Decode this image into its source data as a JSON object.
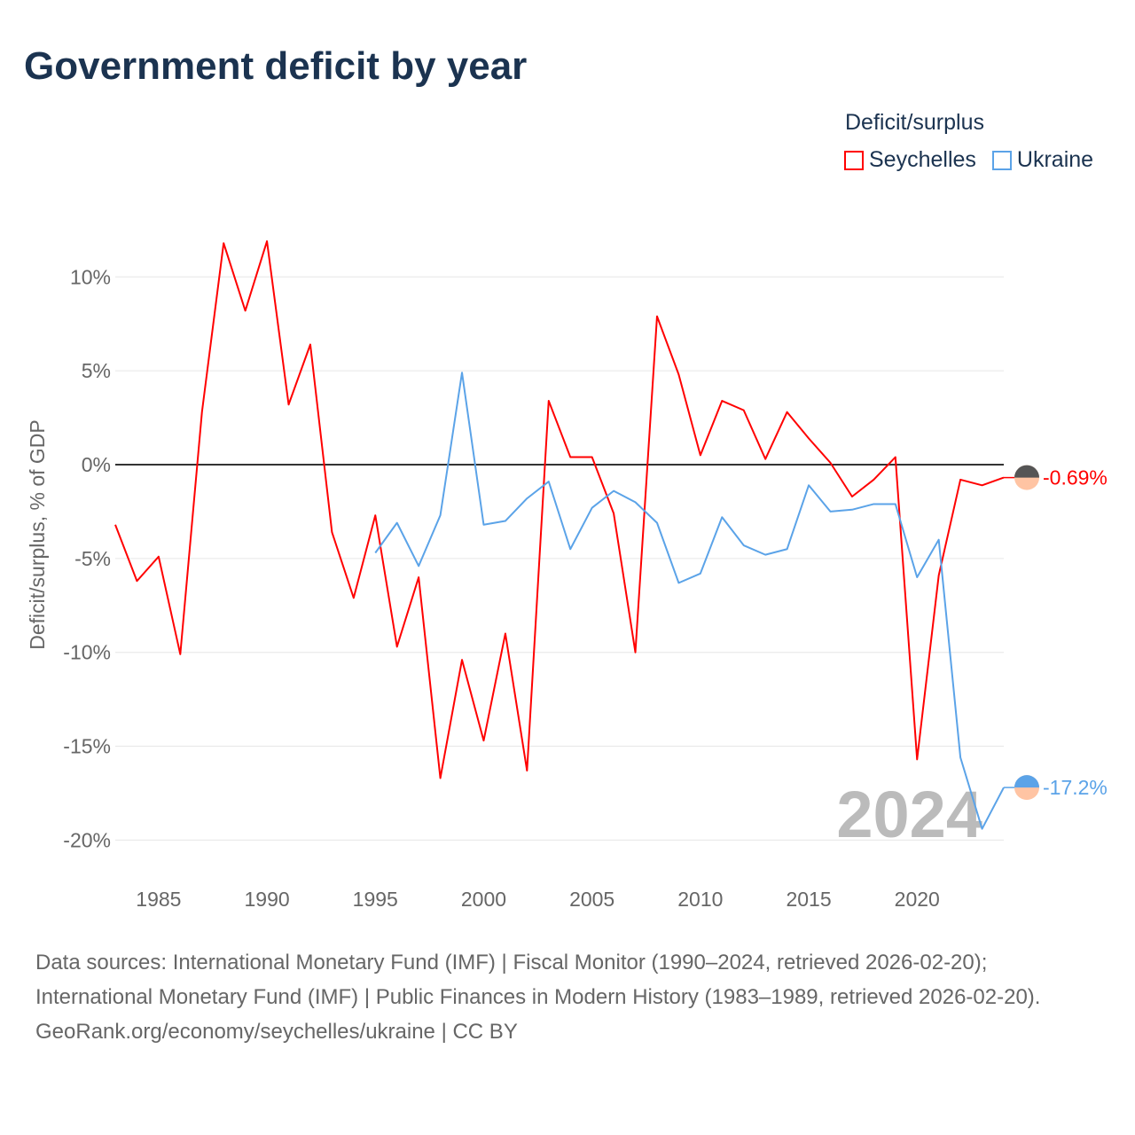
{
  "title": "Government deficit by year",
  "legend": {
    "title": "Deficit/surplus",
    "items": [
      {
        "name": "Seychelles",
        "color": "#ff0000"
      },
      {
        "name": "Ukraine",
        "color": "#5ba3e8"
      }
    ]
  },
  "watermark_year": "2024",
  "source": {
    "line1": "Data sources: International Monetary Fund (IMF) | Fiscal Monitor (1990–2024, retrieved 2026-02-20); International Monetary Fund (IMF) | Public Finances in Modern History (1983–1989, retrieved 2026-02-20).",
    "line2": "GeoRank.org/economy/seychelles/ukraine | CC BY"
  },
  "chart_data": {
    "type": "line",
    "title": "Government deficit by year",
    "ylabel": "Deficit/surplus, % of GDP",
    "xlabel": "",
    "xlim": [
      1983,
      2024
    ],
    "ylim": [
      -20,
      12
    ],
    "xticks": [
      1985,
      1990,
      1995,
      2000,
      2005,
      2010,
      2015,
      2020
    ],
    "yticks": [
      10,
      5,
      0,
      -5,
      -10,
      -15,
      -20
    ],
    "ytick_labels": [
      "10%",
      "5%",
      "0%",
      "-5%",
      "-10%",
      "-15%",
      "-20%"
    ],
    "grid": true,
    "legend_position": "top-right",
    "series": [
      {
        "name": "Seychelles",
        "color": "#ff0000",
        "end_label": "-0.69%",
        "x": [
          1983,
          1984,
          1985,
          1986,
          1987,
          1988,
          1989,
          1990,
          1991,
          1992,
          1993,
          1994,
          1995,
          1996,
          1997,
          1998,
          1999,
          2000,
          2001,
          2002,
          2003,
          2004,
          2005,
          2006,
          2007,
          2008,
          2009,
          2010,
          2011,
          2012,
          2013,
          2014,
          2015,
          2016,
          2017,
          2018,
          2019,
          2020,
          2021,
          2022,
          2023,
          2024
        ],
        "values": [
          -3.2,
          -6.2,
          -4.9,
          -10.1,
          2.8,
          11.8,
          8.2,
          11.9,
          3.2,
          6.4,
          -3.6,
          -7.1,
          -2.7,
          -9.7,
          -6.0,
          -16.7,
          -10.4,
          -14.7,
          -9.0,
          -16.3,
          3.4,
          0.4,
          0.4,
          -2.6,
          -10.0,
          7.9,
          4.8,
          0.5,
          3.4,
          2.9,
          0.3,
          2.8,
          1.4,
          0.1,
          -1.7,
          -0.8,
          0.4,
          -15.7,
          -5.9,
          -0.8,
          -1.1,
          -0.69
        ]
      },
      {
        "name": "Ukraine",
        "color": "#5ba3e8",
        "end_label": "-17.2%",
        "x": [
          1995,
          1996,
          1997,
          1998,
          1999,
          2000,
          2001,
          2002,
          2003,
          2004,
          2005,
          2006,
          2007,
          2008,
          2009,
          2010,
          2011,
          2012,
          2013,
          2014,
          2015,
          2016,
          2017,
          2018,
          2019,
          2020,
          2021,
          2022,
          2023,
          2024
        ],
        "values": [
          -4.7,
          -3.1,
          -5.4,
          -2.7,
          4.9,
          -3.2,
          -3.0,
          -1.8,
          -0.9,
          -4.5,
          -2.3,
          -1.4,
          -2.0,
          -3.1,
          -6.3,
          -5.8,
          -2.8,
          -4.3,
          -4.8,
          -4.5,
          -1.1,
          -2.5,
          -2.4,
          -2.1,
          -2.1,
          -6.0,
          -4.0,
          -15.6,
          -19.4,
          -17.2
        ]
      }
    ]
  }
}
